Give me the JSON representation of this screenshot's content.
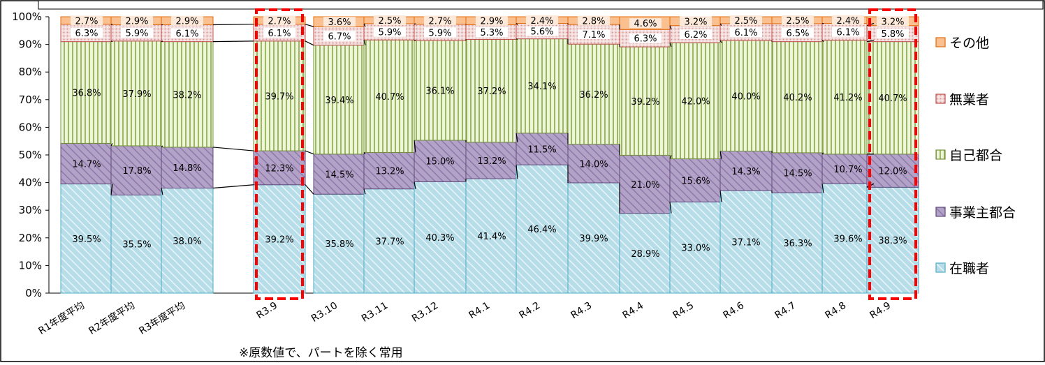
{
  "chart_data": {
    "type": "bar",
    "stacked": true,
    "categories": [
      "R1年度平均",
      "R2年度平均",
      "R3年度平均",
      "R3.9",
      "R3.10",
      "R3.11",
      "R3.12",
      "R4.1",
      "R4.2",
      "R4.3",
      "R4.4",
      "R4.5",
      "R4.6",
      "R4.7",
      "R4.8",
      "R4.9"
    ],
    "series": [
      {
        "name": "在職者",
        "color": "#b7dde8",
        "pattern": "diagonal-stripes",
        "values": [
          39.5,
          35.5,
          38.0,
          39.2,
          35.8,
          37.7,
          40.3,
          41.4,
          46.4,
          39.9,
          28.9,
          33.0,
          37.1,
          36.3,
          39.6,
          38.3
        ],
        "labels": [
          "39.5%",
          "35.5%",
          "38.0%",
          "39.2%",
          "35.8%",
          "37.7%",
          "40.3%",
          "41.4%",
          "46.4%",
          "39.9%",
          "28.9%",
          "33.0%",
          "37.1%",
          "36.3%",
          "39.6%",
          "38.3%"
        ]
      },
      {
        "name": "事業主都合",
        "color": "#b3a2c7",
        "pattern": "diagonal-stripes",
        "values": [
          14.7,
          17.8,
          14.8,
          12.3,
          14.5,
          13.2,
          15.0,
          13.2,
          11.5,
          14.0,
          21.0,
          15.6,
          14.3,
          14.5,
          10.7,
          12.0
        ],
        "labels": [
          "14.7%",
          "17.8%",
          "14.8%",
          "12.3%",
          "14.5%",
          "13.2%",
          "15.0%",
          "13.2%",
          "11.5%",
          "14.0%",
          "21.0%",
          "15.6%",
          "14.3%",
          "14.5%",
          "10.7%",
          "12.0%"
        ]
      },
      {
        "name": "自己都合",
        "color": "#d7e4bd",
        "pattern": "vertical-stripes",
        "values": [
          36.8,
          37.9,
          38.2,
          39.7,
          39.4,
          40.7,
          36.1,
          37.2,
          34.1,
          36.2,
          39.2,
          42.0,
          40.0,
          40.2,
          41.2,
          40.7
        ],
        "labels": [
          "36.8%",
          "37.9%",
          "38.2%",
          "39.7%",
          "39.4%",
          "40.7%",
          "36.1%",
          "37.2%",
          "34.1%",
          "36.2%",
          "39.2%",
          "42.0%",
          "40.0%",
          "40.2%",
          "41.2%",
          "40.7%"
        ]
      },
      {
        "name": "無業者",
        "color": "#f2dcdb",
        "pattern": "dots",
        "values": [
          6.3,
          5.9,
          6.1,
          6.1,
          6.7,
          5.9,
          5.9,
          5.3,
          5.6,
          7.1,
          6.3,
          6.2,
          6.1,
          6.5,
          6.1,
          5.8
        ],
        "labels": [
          "6.3%",
          "5.9%",
          "6.1%",
          "6.1%",
          "6.7%",
          "5.9%",
          "5.9%",
          "5.3%",
          "5.6%",
          "7.1%",
          "6.3%",
          "6.2%",
          "6.1%",
          "6.5%",
          "6.1%",
          "5.8%"
        ]
      },
      {
        "name": "その他",
        "color": "#fac090",
        "pattern": "solid",
        "values": [
          2.7,
          2.9,
          2.9,
          2.7,
          3.6,
          2.5,
          2.7,
          2.9,
          2.4,
          2.8,
          4.6,
          3.2,
          2.5,
          2.5,
          2.4,
          3.2
        ],
        "labels": [
          "2.7%",
          "2.9%",
          "2.9%",
          "2.7%",
          "3.6%",
          "2.5%",
          "2.7%",
          "2.9%",
          "2.4%",
          "2.8%",
          "4.6%",
          "3.2%",
          "2.5%",
          "2.5%",
          "2.4%",
          "3.2%"
        ]
      }
    ],
    "yticks": [
      "0%",
      "10%",
      "20%",
      "30%",
      "40%",
      "50%",
      "60%",
      "70%",
      "80%",
      "90%",
      "100%"
    ],
    "ylim": [
      0,
      100
    ],
    "highlighted": [
      "R3.9",
      "R4.9"
    ],
    "highlight_color": "#ff0000",
    "legend_position": "right",
    "legend_order": [
      "その他",
      "無業者",
      "自己都合",
      "事業主都合",
      "在職者"
    ],
    "grid": false,
    "series_connector_lines": true
  },
  "footnote": "※原数値で、パートを除く常用"
}
